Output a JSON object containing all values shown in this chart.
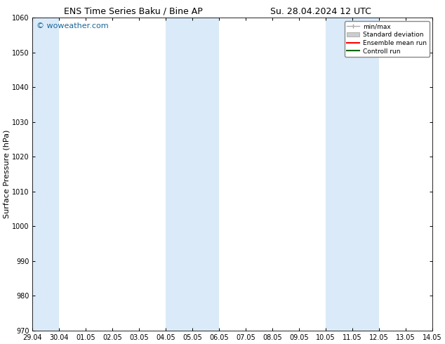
{
  "title_left": "ENS Time Series Baku / Bine AP",
  "title_right": "Su. 28.04.2024 12 UTC",
  "ylabel": "Surface Pressure (hPa)",
  "ylim": [
    970,
    1060
  ],
  "yticks": [
    970,
    980,
    990,
    1000,
    1010,
    1020,
    1030,
    1040,
    1050,
    1060
  ],
  "xlabel_ticks": [
    "29.04",
    "30.04",
    "01.05",
    "02.05",
    "03.05",
    "04.05",
    "05.05",
    "06.05",
    "07.05",
    "08.05",
    "09.05",
    "10.05",
    "11.05",
    "12.05",
    "13.05",
    "14.05"
  ],
  "x_values": [
    0,
    1,
    2,
    3,
    4,
    5,
    6,
    7,
    8,
    9,
    10,
    11,
    12,
    13,
    14,
    15
  ],
  "shaded_bands": [
    {
      "xmin": 0,
      "xmax": 1,
      "color": "#daeaf8"
    },
    {
      "xmin": 5,
      "xmax": 7,
      "color": "#daeaf8"
    },
    {
      "xmin": 11,
      "xmax": 13,
      "color": "#daeaf8"
    }
  ],
  "watermark": "© woweather.com",
  "watermark_color": "#1a6699",
  "bg_color": "#ffffff",
  "plot_bg_color": "#ffffff",
  "legend_items": [
    {
      "label": "min/max",
      "color": "#aaaaaa",
      "lw": 1.0
    },
    {
      "label": "Standard deviation",
      "color": "#cccccc",
      "lw": 6
    },
    {
      "label": "Ensemble mean run",
      "color": "#ff0000",
      "lw": 1.5
    },
    {
      "label": "Controll run",
      "color": "#006600",
      "lw": 1.5
    }
  ],
  "title_fontsize": 9,
  "tick_fontsize": 7,
  "label_fontsize": 8,
  "watermark_fontsize": 8
}
